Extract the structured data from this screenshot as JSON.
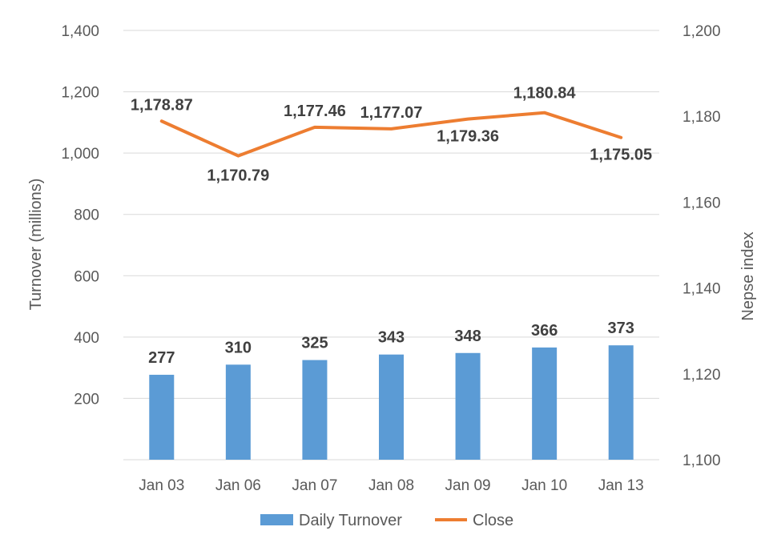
{
  "chart_data": {
    "type": "bar+line",
    "categories": [
      "Jan 03",
      "Jan 06",
      "Jan 07",
      "Jan 08",
      "Jan 09",
      "Jan 10",
      "Jan 13"
    ],
    "series": [
      {
        "name": "Daily Turnover",
        "type": "bar",
        "axis": "left",
        "color": "#5b9bd5",
        "values": [
          277,
          310,
          325,
          343,
          348,
          366,
          373
        ],
        "labels": [
          "277",
          "310",
          "325",
          "343",
          "348",
          "366",
          "373"
        ]
      },
      {
        "name": "Close",
        "type": "line",
        "axis": "right",
        "color": "#ed7d31",
        "values": [
          1178.87,
          1170.79,
          1177.46,
          1177.07,
          1179.36,
          1180.84,
          1175.05
        ],
        "labels": [
          "1,178.87",
          "1,170.79",
          "1,177.46",
          "1,177.07",
          "1,179.36",
          "1,180.84",
          "1,175.05"
        ]
      }
    ],
    "left_axis": {
      "title": "Turnover (millions)",
      "min": 0,
      "max": 1400,
      "ticks": [
        0,
        200,
        400,
        600,
        800,
        1000,
        1200,
        1400
      ],
      "tick_labels": [
        "",
        "200",
        "400",
        "600",
        "800",
        "1,000",
        "1,200",
        "1,400"
      ]
    },
    "right_axis": {
      "title": "Nepse index",
      "min": 1100,
      "max": 1200,
      "ticks": [
        1100,
        1120,
        1140,
        1160,
        1180,
        1200
      ],
      "tick_labels": [
        "1,100",
        "1,120",
        "1,140",
        "1,160",
        "1,180",
        "1,200"
      ]
    },
    "grid": true,
    "legend_position": "bottom"
  }
}
